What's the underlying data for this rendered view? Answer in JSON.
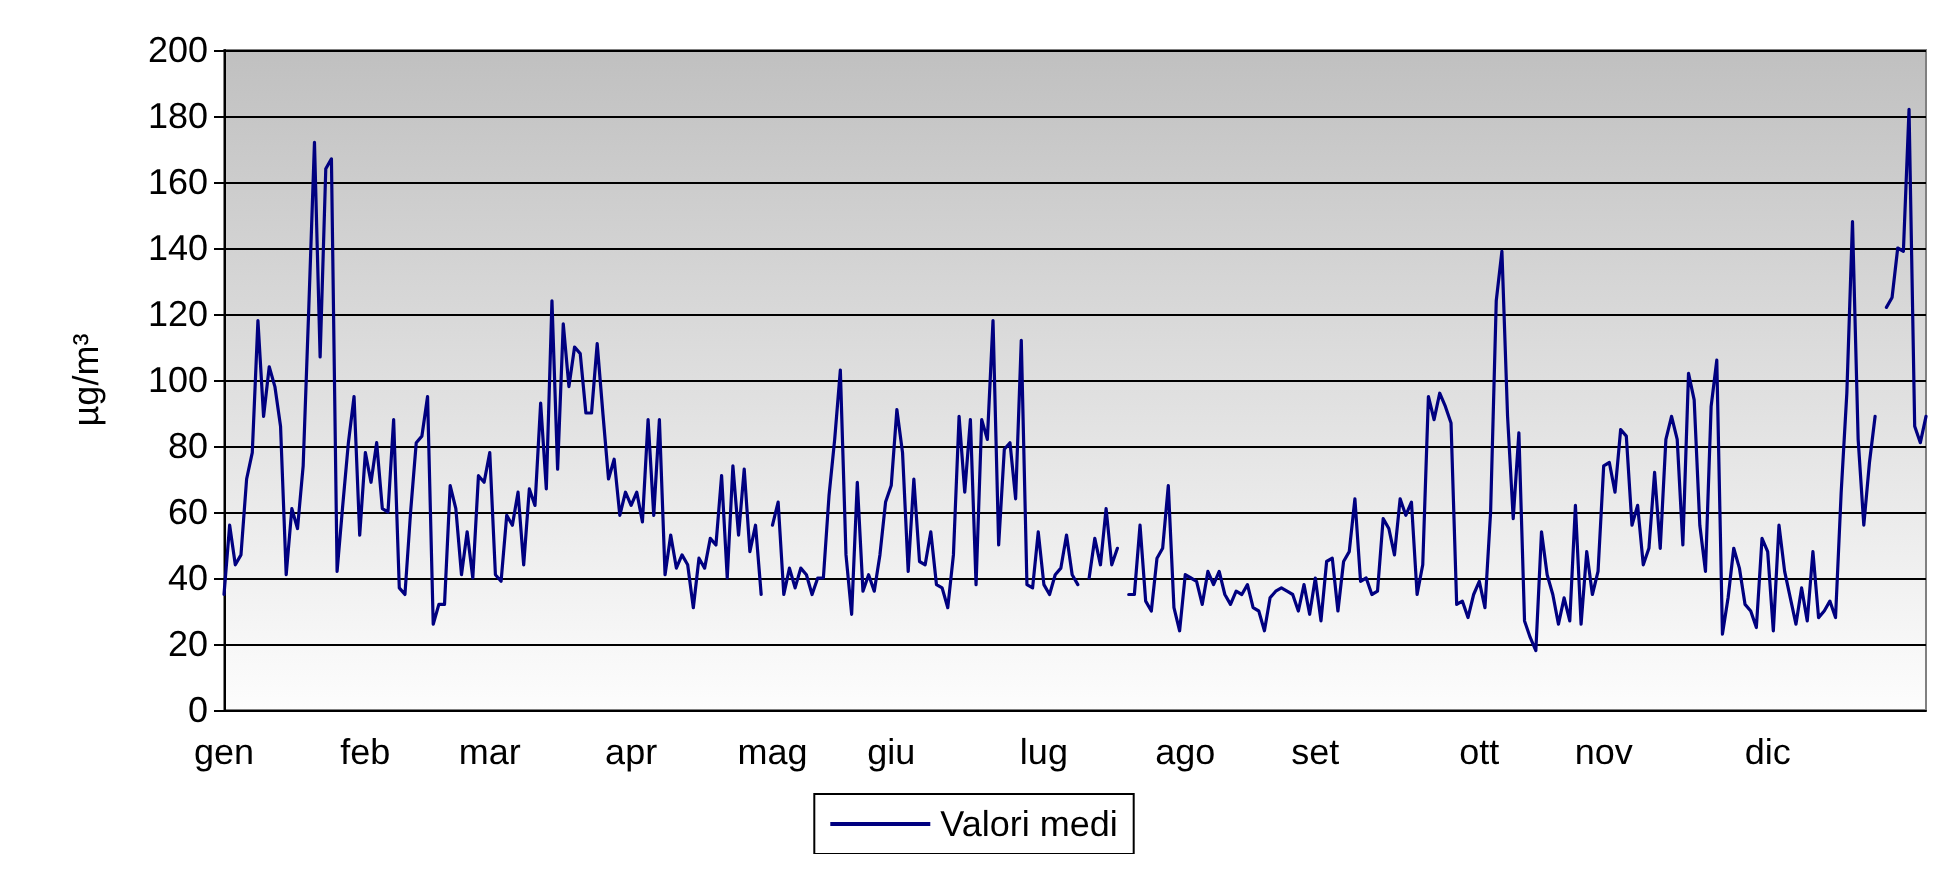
{
  "chart_data": {
    "type": "line",
    "ylabel": "µg/m³",
    "categories": [
      "gen",
      null,
      null,
      null,
      null,
      null,
      null,
      null,
      null,
      null,
      null,
      null,
      null,
      null,
      null,
      null,
      null,
      null,
      null,
      null,
      null,
      null,
      null,
      null,
      null,
      "feb",
      null,
      null,
      null,
      null,
      null,
      null,
      null,
      null,
      null,
      null,
      null,
      null,
      null,
      null,
      null,
      null,
      null,
      null,
      null,
      null,
      null,
      "mar",
      null,
      null,
      null,
      null,
      null,
      null,
      null,
      null,
      null,
      null,
      null,
      null,
      null,
      null,
      null,
      null,
      null,
      null,
      null,
      null,
      null,
      null,
      null,
      null,
      "apr",
      null,
      null,
      null,
      null,
      null,
      null,
      null,
      null,
      null,
      null,
      null,
      null,
      null,
      null,
      null,
      null,
      null,
      null,
      null,
      null,
      null,
      null,
      null,
      null,
      "mag",
      null,
      null,
      null,
      null,
      null,
      null,
      null,
      null,
      null,
      null,
      null,
      null,
      null,
      null,
      null,
      null,
      null,
      null,
      null,
      null,
      "giu",
      null,
      null,
      null,
      null,
      null,
      null,
      null,
      null,
      null,
      null,
      null,
      null,
      null,
      null,
      null,
      null,
      null,
      null,
      null,
      null,
      null,
      null,
      null,
      null,
      null,
      null,
      "lug",
      null,
      null,
      null,
      null,
      null,
      null,
      null,
      null,
      null,
      null,
      null,
      null,
      null,
      null,
      null,
      null,
      null,
      null,
      null,
      null,
      null,
      null,
      null,
      null,
      "ago",
      null,
      null,
      null,
      null,
      null,
      null,
      null,
      null,
      null,
      null,
      null,
      null,
      null,
      null,
      null,
      null,
      null,
      null,
      null,
      null,
      null,
      null,
      "set",
      null,
      null,
      null,
      null,
      null,
      null,
      null,
      null,
      null,
      null,
      null,
      null,
      null,
      null,
      null,
      null,
      null,
      null,
      null,
      null,
      null,
      null,
      null,
      null,
      null,
      null,
      null,
      null,
      "ott",
      null,
      null,
      null,
      null,
      null,
      null,
      null,
      null,
      null,
      null,
      null,
      null,
      null,
      null,
      null,
      null,
      null,
      null,
      null,
      null,
      null,
      "nov",
      null,
      null,
      null,
      null,
      null,
      null,
      null,
      null,
      null,
      null,
      null,
      null,
      null,
      null,
      null,
      null,
      null,
      null,
      null,
      null,
      null,
      null,
      null,
      null,
      null,
      null,
      null,
      null,
      "dic",
      null,
      null,
      null,
      null,
      null,
      null,
      null,
      null,
      null,
      null,
      null,
      null,
      null,
      null,
      null,
      null,
      null,
      null,
      null,
      null,
      null,
      null,
      null,
      null,
      null,
      null,
      null,
      null
    ],
    "series": [
      {
        "name": "Valori medi",
        "color": "#000080",
        "values": [
          35,
          56,
          44,
          47,
          70,
          78,
          118,
          89,
          104,
          98,
          86,
          41,
          61,
          55,
          74,
          122,
          172,
          107,
          164,
          167,
          42,
          62,
          81,
          95,
          53,
          78,
          69,
          81,
          61,
          60,
          88,
          37,
          35,
          60,
          81,
          83,
          95,
          26,
          32,
          32,
          68,
          61,
          41,
          54,
          40,
          71,
          69,
          78,
          41,
          39,
          59,
          56,
          66,
          44,
          67,
          62,
          93,
          67,
          124,
          73,
          117,
          98,
          110,
          108,
          90,
          90,
          111,
          90,
          70,
          76,
          59,
          66,
          62,
          66,
          57,
          88,
          59,
          88,
          41,
          53,
          43,
          47,
          44,
          31,
          46,
          43,
          52,
          50,
          71,
          40,
          74,
          53,
          73,
          48,
          56,
          35,
          null,
          56,
          63,
          35,
          43,
          37,
          43,
          41,
          35,
          40,
          40,
          65,
          82,
          103,
          47,
          29,
          69,
          36,
          41,
          36,
          47,
          63,
          68,
          91,
          78,
          42,
          70,
          45,
          44,
          54,
          38,
          37,
          31,
          47,
          89,
          66,
          88,
          38,
          88,
          82,
          118,
          50,
          79,
          81,
          64,
          112,
          38,
          37,
          54,
          38,
          35,
          41,
          43,
          53,
          41,
          38,
          null,
          40,
          52,
          44,
          61,
          44,
          49,
          null,
          35,
          35,
          56,
          33,
          30,
          46,
          49,
          68,
          31,
          24,
          41,
          40,
          39,
          32,
          42,
          38,
          42,
          35,
          32,
          36,
          35,
          38,
          31,
          30,
          24,
          34,
          36,
          37,
          36,
          35,
          30,
          38,
          29,
          40,
          27,
          45,
          46,
          30,
          45,
          48,
          64,
          39,
          40,
          35,
          36,
          58,
          55,
          47,
          64,
          59,
          63,
          35,
          44,
          95,
          88,
          96,
          92,
          87,
          32,
          33,
          28,
          35,
          39,
          31,
          60,
          124,
          139,
          89,
          58,
          84,
          27,
          22,
          18,
          54,
          41,
          35,
          26,
          34,
          27,
          62,
          26,
          48,
          35,
          42,
          74,
          75,
          66,
          85,
          83,
          56,
          62,
          44,
          49,
          72,
          49,
          82,
          89,
          82,
          50,
          102,
          94,
          56,
          42,
          92,
          106,
          23,
          34,
          49,
          43,
          32,
          30,
          25,
          52,
          48,
          24,
          56,
          42,
          34,
          26,
          37,
          27,
          48,
          28,
          30,
          33,
          28,
          66,
          96,
          148,
          82,
          56,
          75,
          89,
          null,
          122,
          125,
          140,
          139,
          182,
          86,
          81,
          89
        ]
      }
    ],
    "ylim": [
      0,
      200
    ],
    "yticks": [
      0,
      20,
      40,
      60,
      80,
      100,
      120,
      140,
      160,
      180,
      200
    ],
    "grid": "y",
    "legend": "bottom",
    "marker": "none",
    "line_style": "solid"
  }
}
